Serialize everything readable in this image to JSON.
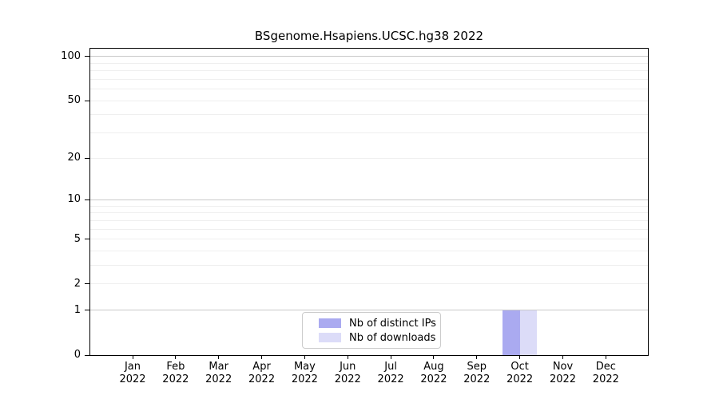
{
  "figure": {
    "background": "#ffffff"
  },
  "chart_data": {
    "type": "bar",
    "title": "BSgenome.Hsapiens.UCSC.hg38 2022",
    "categories": [
      "Jan 2022",
      "Feb 2022",
      "Mar 2022",
      "Apr 2022",
      "May 2022",
      "Jun 2022",
      "Jul 2022",
      "Aug 2022",
      "Sep 2022",
      "Oct 2022",
      "Nov 2022",
      "Dec 2022"
    ],
    "series": [
      {
        "name": "Nb of distinct IPs",
        "color": "#aaaaf0",
        "values": [
          0,
          0,
          0,
          0,
          0,
          0,
          0,
          0,
          0,
          1,
          0,
          0
        ]
      },
      {
        "name": "Nb of downloads",
        "color": "#dcdcf8",
        "values": [
          0,
          0,
          0,
          0,
          0,
          0,
          0,
          0,
          0,
          1,
          0,
          0
        ]
      }
    ],
    "xlabel": "",
    "ylabel": "",
    "yscale": "log10(1+y)",
    "ylim": [
      0,
      113
    ],
    "yticks": [
      0,
      1,
      2,
      5,
      10,
      20,
      50,
      100
    ],
    "major_gridlines": [
      1,
      10,
      100
    ],
    "minor_gridlines": [
      2,
      3,
      4,
      5,
      6,
      7,
      8,
      9,
      20,
      30,
      40,
      50,
      60,
      70,
      80,
      90
    ],
    "grid": true,
    "legend_position": "bottom-center-inside",
    "colors": {
      "axis": "#000000",
      "major_grid": "#c9c9c9",
      "minor_grid": "#efefef",
      "legend_border": "#cccccc"
    }
  }
}
